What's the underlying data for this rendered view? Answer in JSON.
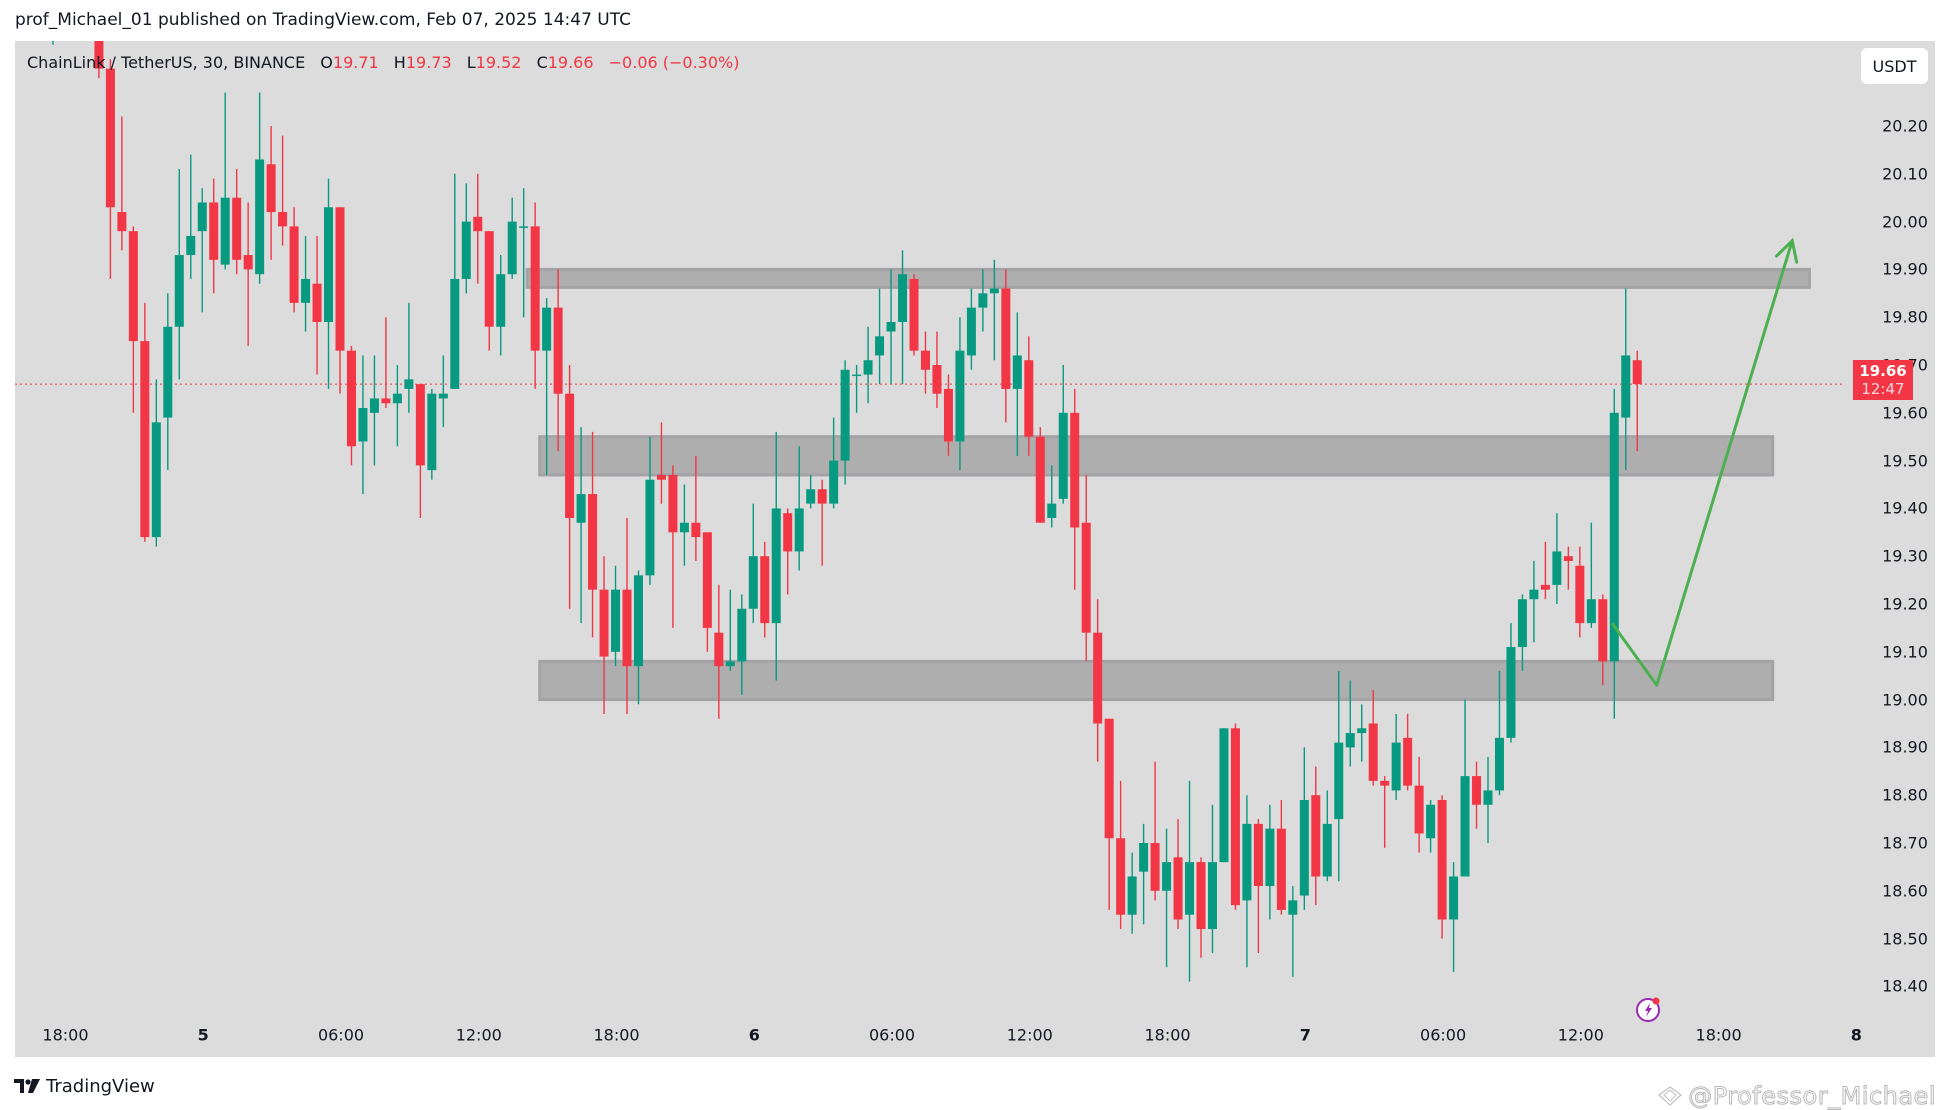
{
  "header": {
    "publish_line": "prof_Michael_01 published on TradingView.com, Feb 07, 2025 14:47 UTC"
  },
  "legend": {
    "symbol": "ChainLink / TetherUS, 30, BINANCE",
    "open_label": "O",
    "open": "19.71",
    "high_label": "H",
    "high": "19.73",
    "low_label": "L",
    "low": "19.52",
    "close_label": "C",
    "close": "19.66",
    "change": "−0.06 (−0.30%)"
  },
  "currency_button": "USDT",
  "last_price": {
    "price": "19.66",
    "countdown": "12:47"
  },
  "footer": {
    "brand": "TradingView",
    "logo_icon": "tradingview-logo-icon"
  },
  "watermark": "@Professor_Michael",
  "colors": {
    "up": "#089981",
    "down": "#f23645",
    "background": "#dcdcdc",
    "zone_fill": "#aeaeae",
    "zone_border": "#a3a3a6",
    "arrow": "#4caf50",
    "last_price_line": "#f23645",
    "bolt_icon": "#9c27b0"
  },
  "chart_data": {
    "type": "candlestick",
    "title": "ChainLink / TetherUS, 30, BINANCE",
    "interval": "30m",
    "ylabel": "USDT",
    "ylim": [
      18.36,
      20.4
    ],
    "grid": false,
    "y_ticks": [
      "20.20",
      "20.10",
      "20.00",
      "19.90",
      "19.80",
      "19.70",
      "19.60",
      "19.50",
      "19.40",
      "19.30",
      "19.20",
      "19.10",
      "19.00",
      "18.90",
      "18.80",
      "18.70",
      "18.60",
      "18.50",
      "18.40"
    ],
    "x_ticks": [
      {
        "slot": 1,
        "label": "18:00",
        "bold": false
      },
      {
        "slot": 13,
        "label": "5",
        "bold": true
      },
      {
        "slot": 25,
        "label": "06:00",
        "bold": false
      },
      {
        "slot": 37,
        "label": "12:00",
        "bold": false
      },
      {
        "slot": 49,
        "label": "18:00",
        "bold": false
      },
      {
        "slot": 61,
        "label": "6",
        "bold": true
      },
      {
        "slot": 73,
        "label": "06:00",
        "bold": false
      },
      {
        "slot": 85,
        "label": "12:00",
        "bold": false
      },
      {
        "slot": 97,
        "label": "18:00",
        "bold": false
      },
      {
        "slot": 109,
        "label": "7",
        "bold": true
      },
      {
        "slot": 121,
        "label": "06:00",
        "bold": false
      },
      {
        "slot": 133,
        "label": "12:00",
        "bold": false
      },
      {
        "slot": 145,
        "label": "18:00",
        "bold": false
      },
      {
        "slot": 157,
        "label": "8",
        "bold": true
      }
    ],
    "candle_fields": [
      "slot",
      "open",
      "high",
      "low",
      "close"
    ],
    "candles": [
      [
        0,
        20.4,
        20.5,
        20.37,
        20.46
      ],
      [
        4,
        20.5,
        20.55,
        20.3,
        20.32
      ],
      [
        5,
        20.32,
        20.34,
        19.88,
        20.03
      ],
      [
        6,
        20.02,
        20.22,
        19.94,
        19.98
      ],
      [
        7,
        19.98,
        19.99,
        19.6,
        19.75
      ],
      [
        8,
        19.75,
        19.83,
        19.33,
        19.34
      ],
      [
        9,
        19.34,
        19.67,
        19.32,
        19.58
      ],
      [
        10,
        19.59,
        19.85,
        19.48,
        19.78
      ],
      [
        11,
        19.78,
        20.11,
        19.67,
        19.93
      ],
      [
        12,
        19.93,
        20.14,
        19.88,
        19.97
      ],
      [
        13,
        19.98,
        20.07,
        19.81,
        20.04
      ],
      [
        14,
        20.04,
        20.09,
        19.85,
        19.92
      ],
      [
        15,
        19.91,
        20.27,
        19.9,
        20.05
      ],
      [
        16,
        20.05,
        20.11,
        19.89,
        19.92
      ],
      [
        17,
        19.93,
        20.04,
        19.74,
        19.9
      ],
      [
        18,
        19.89,
        20.27,
        19.87,
        20.13
      ],
      [
        19,
        20.12,
        20.2,
        19.92,
        20.02
      ],
      [
        20,
        20.02,
        20.18,
        19.95,
        19.99
      ],
      [
        21,
        19.99,
        20.03,
        19.81,
        19.83
      ],
      [
        22,
        19.83,
        19.97,
        19.77,
        19.88
      ],
      [
        23,
        19.87,
        19.97,
        19.68,
        19.79
      ],
      [
        24,
        19.79,
        20.09,
        19.65,
        20.03
      ],
      [
        25,
        20.03,
        20.03,
        19.64,
        19.73
      ],
      [
        26,
        19.73,
        19.74,
        19.49,
        19.53
      ],
      [
        27,
        19.54,
        19.72,
        19.43,
        19.61
      ],
      [
        28,
        19.6,
        19.72,
        19.49,
        19.63
      ],
      [
        29,
        19.63,
        19.8,
        19.61,
        19.62
      ],
      [
        30,
        19.62,
        19.7,
        19.53,
        19.64
      ],
      [
        31,
        19.65,
        19.83,
        19.6,
        19.67
      ],
      [
        32,
        19.66,
        19.66,
        19.38,
        19.49
      ],
      [
        33,
        19.48,
        19.65,
        19.46,
        19.64
      ],
      [
        34,
        19.63,
        19.72,
        19.57,
        19.64
      ],
      [
        35,
        19.65,
        20.1,
        19.65,
        19.88
      ],
      [
        36,
        19.88,
        20.08,
        19.85,
        20.0
      ],
      [
        37,
        20.01,
        20.1,
        19.87,
        19.98
      ],
      [
        38,
        19.98,
        19.98,
        19.73,
        19.78
      ],
      [
        39,
        19.78,
        19.93,
        19.72,
        19.89
      ],
      [
        40,
        19.89,
        20.05,
        19.88,
        20.0
      ],
      [
        41,
        19.99,
        20.07,
        19.8,
        19.99
      ],
      [
        42,
        19.99,
        20.04,
        19.65,
        19.73
      ],
      [
        43,
        19.73,
        19.84,
        19.47,
        19.82
      ],
      [
        44,
        19.82,
        19.9,
        19.52,
        19.64
      ],
      [
        45,
        19.64,
        19.7,
        19.19,
        19.38
      ],
      [
        46,
        19.37,
        19.57,
        19.16,
        19.43
      ],
      [
        47,
        19.43,
        19.56,
        19.13,
        19.23
      ],
      [
        48,
        19.23,
        19.3,
        18.97,
        19.09
      ],
      [
        49,
        19.1,
        19.28,
        19.07,
        19.23
      ],
      [
        50,
        19.23,
        19.38,
        18.97,
        19.07
      ],
      [
        51,
        19.07,
        19.27,
        18.99,
        19.26
      ],
      [
        52,
        19.26,
        19.55,
        19.24,
        19.46
      ],
      [
        53,
        19.47,
        19.58,
        19.41,
        19.46
      ],
      [
        54,
        19.47,
        19.49,
        19.15,
        19.35
      ],
      [
        55,
        19.35,
        19.45,
        19.28,
        19.37
      ],
      [
        56,
        19.37,
        19.51,
        19.29,
        19.34
      ],
      [
        57,
        19.35,
        19.35,
        19.1,
        19.15
      ],
      [
        58,
        19.14,
        19.24,
        18.96,
        19.07
      ],
      [
        59,
        19.07,
        19.23,
        19.06,
        19.08
      ],
      [
        60,
        19.08,
        19.22,
        19.01,
        19.19
      ],
      [
        61,
        19.19,
        19.41,
        19.16,
        19.3
      ],
      [
        62,
        19.3,
        19.33,
        19.13,
        19.16
      ],
      [
        63,
        19.16,
        19.56,
        19.04,
        19.4
      ],
      [
        64,
        19.39,
        19.4,
        19.22,
        19.31
      ],
      [
        65,
        19.31,
        19.53,
        19.27,
        19.4
      ],
      [
        66,
        19.41,
        19.47,
        19.4,
        19.44
      ],
      [
        67,
        19.44,
        19.46,
        19.28,
        19.41
      ],
      [
        68,
        19.41,
        19.59,
        19.4,
        19.5
      ],
      [
        69,
        19.5,
        19.71,
        19.45,
        19.69
      ],
      [
        70,
        19.68,
        19.7,
        19.6,
        19.68
      ],
      [
        71,
        19.68,
        19.78,
        19.62,
        19.71
      ],
      [
        72,
        19.72,
        19.86,
        19.66,
        19.76
      ],
      [
        73,
        19.77,
        19.9,
        19.66,
        19.79
      ],
      [
        74,
        19.79,
        19.94,
        19.66,
        19.89
      ],
      [
        75,
        19.88,
        19.89,
        19.72,
        19.73
      ],
      [
        76,
        19.73,
        19.77,
        19.64,
        19.69
      ],
      [
        77,
        19.7,
        19.77,
        19.61,
        19.64
      ],
      [
        78,
        19.65,
        19.68,
        19.51,
        19.54
      ],
      [
        79,
        19.54,
        19.8,
        19.48,
        19.73
      ],
      [
        80,
        19.72,
        19.86,
        19.69,
        19.82
      ],
      [
        81,
        19.82,
        19.9,
        19.77,
        19.85
      ],
      [
        82,
        19.85,
        19.92,
        19.71,
        19.86
      ],
      [
        83,
        19.86,
        19.9,
        19.58,
        19.65
      ],
      [
        84,
        19.65,
        19.81,
        19.51,
        19.72
      ],
      [
        85,
        19.71,
        19.76,
        19.51,
        19.55
      ],
      [
        86,
        19.55,
        19.57,
        19.37,
        19.37
      ],
      [
        87,
        19.38,
        19.49,
        19.36,
        19.41
      ],
      [
        88,
        19.42,
        19.7,
        19.41,
        19.6
      ],
      [
        89,
        19.6,
        19.65,
        19.23,
        19.36
      ],
      [
        90,
        19.37,
        19.47,
        19.08,
        19.14
      ],
      [
        91,
        19.14,
        19.21,
        18.87,
        18.95
      ],
      [
        92,
        18.96,
        18.96,
        18.56,
        18.71
      ],
      [
        93,
        18.71,
        18.83,
        18.52,
        18.55
      ],
      [
        94,
        18.55,
        18.68,
        18.51,
        18.63
      ],
      [
        95,
        18.64,
        18.74,
        18.53,
        18.7
      ],
      [
        96,
        18.7,
        18.87,
        18.58,
        18.6
      ],
      [
        97,
        18.6,
        18.73,
        18.44,
        18.66
      ],
      [
        98,
        18.67,
        18.75,
        18.52,
        18.54
      ],
      [
        99,
        18.55,
        18.83,
        18.41,
        18.66
      ],
      [
        100,
        18.66,
        18.67,
        18.46,
        18.52
      ],
      [
        101,
        18.52,
        18.78,
        18.47,
        18.66
      ],
      [
        102,
        18.66,
        18.94,
        18.66,
        18.94
      ],
      [
        103,
        18.94,
        18.95,
        18.56,
        18.57
      ],
      [
        104,
        18.58,
        18.8,
        18.44,
        18.74
      ],
      [
        105,
        18.74,
        18.75,
        18.47,
        18.61
      ],
      [
        106,
        18.61,
        18.78,
        18.54,
        18.73
      ],
      [
        107,
        18.73,
        18.79,
        18.55,
        18.56
      ],
      [
        108,
        18.55,
        18.61,
        18.42,
        18.58
      ],
      [
        109,
        18.59,
        18.9,
        18.56,
        18.79
      ],
      [
        110,
        18.8,
        18.86,
        18.57,
        18.63
      ],
      [
        111,
        18.63,
        18.81,
        18.62,
        18.74
      ],
      [
        112,
        18.75,
        19.06,
        18.62,
        18.91
      ],
      [
        113,
        18.9,
        19.04,
        18.86,
        18.93
      ],
      [
        114,
        18.93,
        18.99,
        18.87,
        18.94
      ],
      [
        115,
        18.95,
        19.02,
        18.82,
        18.83
      ],
      [
        116,
        18.83,
        18.84,
        18.69,
        18.82
      ],
      [
        117,
        18.81,
        18.97,
        18.79,
        18.91
      ],
      [
        118,
        18.92,
        18.97,
        18.81,
        18.82
      ],
      [
        119,
        18.82,
        18.88,
        18.68,
        18.72
      ],
      [
        120,
        18.71,
        18.79,
        18.68,
        18.78
      ],
      [
        121,
        18.79,
        18.8,
        18.5,
        18.54
      ],
      [
        122,
        18.54,
        18.66,
        18.43,
        18.63
      ],
      [
        123,
        18.63,
        19.0,
        18.63,
        18.84
      ],
      [
        124,
        18.84,
        18.87,
        18.73,
        18.78
      ],
      [
        125,
        18.78,
        18.88,
        18.7,
        18.81
      ],
      [
        126,
        18.81,
        19.06,
        18.8,
        18.92
      ],
      [
        127,
        18.92,
        19.16,
        18.91,
        19.11
      ],
      [
        128,
        19.11,
        19.22,
        19.06,
        19.21
      ],
      [
        129,
        19.21,
        19.29,
        19.12,
        19.23
      ],
      [
        130,
        19.24,
        19.33,
        19.21,
        19.23
      ],
      [
        131,
        19.24,
        19.39,
        19.2,
        19.31
      ],
      [
        132,
        19.3,
        19.32,
        19.23,
        19.29
      ],
      [
        133,
        19.28,
        19.32,
        19.13,
        19.16
      ],
      [
        134,
        19.16,
        19.37,
        19.15,
        19.21
      ],
      [
        135,
        19.21,
        19.22,
        19.03,
        19.08
      ],
      [
        136,
        19.08,
        19.65,
        18.96,
        19.6
      ],
      [
        137,
        19.59,
        19.86,
        19.48,
        19.72
      ],
      [
        138,
        19.71,
        19.73,
        19.52,
        19.66
      ]
    ],
    "zones": [
      {
        "name": "resistance-zone",
        "slot_start": 41.3,
        "slot_end": 153,
        "price_top": 19.9,
        "price_bottom": 19.87
      },
      {
        "name": "mid-zone",
        "slot_start": 42.4,
        "slot_end": 149.8,
        "price_top": 19.55,
        "price_bottom": 19.47
      },
      {
        "name": "support-zone",
        "slot_start": 42.4,
        "slot_end": 149.8,
        "price_top": 19.08,
        "price_bottom": 19.0
      }
    ],
    "projection_path": {
      "points": [
        [
          135.8,
          19.16
        ],
        [
          139.7,
          19.03
        ],
        [
          151.5,
          19.96
        ]
      ],
      "arrowhead": true
    },
    "last_price_line": 19.66
  }
}
